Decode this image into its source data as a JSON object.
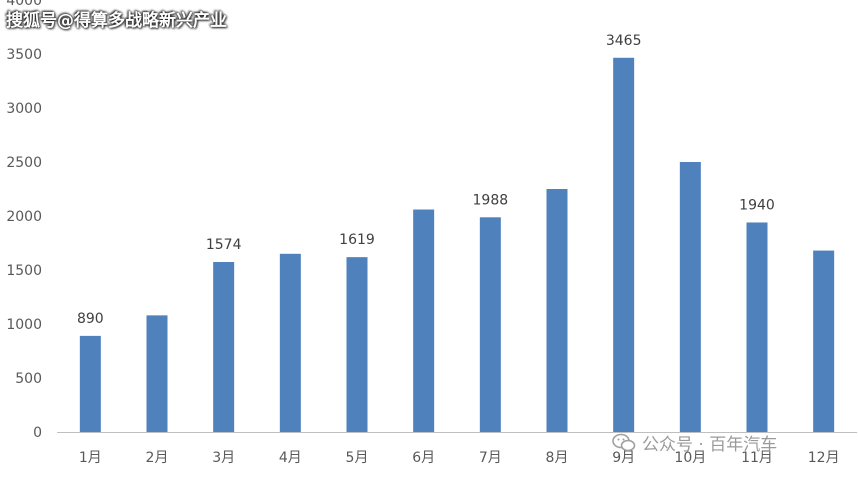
{
  "chart_data": {
    "type": "bar",
    "title": "",
    "xlabel": "",
    "ylabel": "",
    "ylim": [
      0,
      4000
    ],
    "yticks": [
      0,
      500,
      1000,
      1500,
      2000,
      2500,
      3000,
      3500,
      4000
    ],
    "categories": [
      "1月",
      "2月",
      "3月",
      "4月",
      "5月",
      "6月",
      "7月",
      "8月",
      "9月",
      "10月",
      "11月",
      "12月"
    ],
    "values": [
      890,
      1080,
      1574,
      1650,
      1619,
      2060,
      1988,
      2250,
      3465,
      2500,
      1940,
      1680
    ],
    "data_labels": {
      "0": "890",
      "2": "1574",
      "4": "1619",
      "6": "1988",
      "8": "3465",
      "10": "1940"
    },
    "bar_color": "#4f81bd",
    "grid": false
  },
  "watermarks": {
    "top": "搜狐号@得算多战略新兴产业",
    "bottom": "公众号 · 百年汽车",
    "bottom_icon": "wechat-icon"
  }
}
